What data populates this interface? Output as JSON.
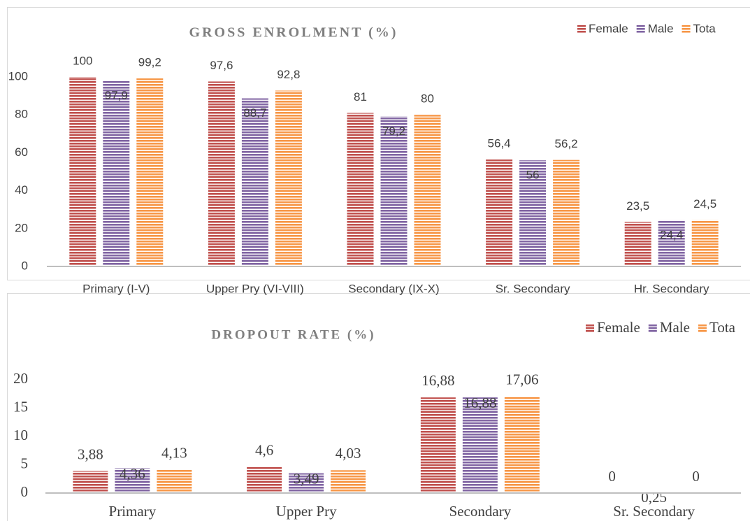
{
  "chart_data": [
    {
      "type": "bar",
      "title": "GROSS ENROLMENT (%)",
      "categories": [
        "Primary (I-V)",
        "Upper Pry (VI-VIII)",
        "Secondary (IX-X)",
        "Sr. Secondary",
        "Hr. Secondary"
      ],
      "series": [
        {
          "name": "Female",
          "color": "#c0504d",
          "values": [
            100,
            97.6,
            81,
            56.4,
            23.5
          ],
          "value_labels": [
            "100",
            "97,6",
            "81",
            "56,4",
            "23,5"
          ]
        },
        {
          "name": "Male",
          "color": "#8064a2",
          "values": [
            97.9,
            88.7,
            79.2,
            56,
            24.4
          ],
          "value_labels": [
            "97,9",
            "88,7",
            "79,2",
            "56",
            "24,4"
          ]
        },
        {
          "name": "Tota",
          "color": "#f79646",
          "values": [
            99.2,
            92.8,
            80,
            56.2,
            24.5
          ],
          "value_labels": [
            "99,2",
            "92,8",
            "80",
            "56,2",
            "24,5"
          ]
        }
      ],
      "ylim": [
        0,
        100
      ],
      "yticks": [
        0,
        20,
        40,
        60,
        80,
        100
      ],
      "grid": false,
      "legend": "top-right"
    },
    {
      "type": "bar",
      "title": "DROPOUT RATE (%)",
      "categories": [
        "Primary",
        "Upper Pry",
        "Secondary",
        "Sr. Secondary"
      ],
      "series": [
        {
          "name": "Female",
          "color": "#c0504d",
          "values": [
            3.88,
            4.6,
            16.88,
            0
          ],
          "value_labels": [
            "3,88",
            "4,6",
            "16,88",
            "0"
          ]
        },
        {
          "name": "Male",
          "color": "#8064a2",
          "values": [
            4.36,
            3.49,
            16.88,
            0.25
          ],
          "value_labels": [
            "4,36",
            "3,49",
            "16,88",
            "0,25"
          ]
        },
        {
          "name": "Tota",
          "color": "#f79646",
          "values": [
            4.13,
            4.03,
            17.06,
            0
          ],
          "value_labels": [
            "4,13",
            "4,03",
            "17,06",
            "0"
          ]
        }
      ],
      "ylim": [
        0,
        20
      ],
      "yticks": [
        0,
        5,
        10,
        15,
        20
      ],
      "grid": false,
      "legend": "top-right"
    }
  ]
}
